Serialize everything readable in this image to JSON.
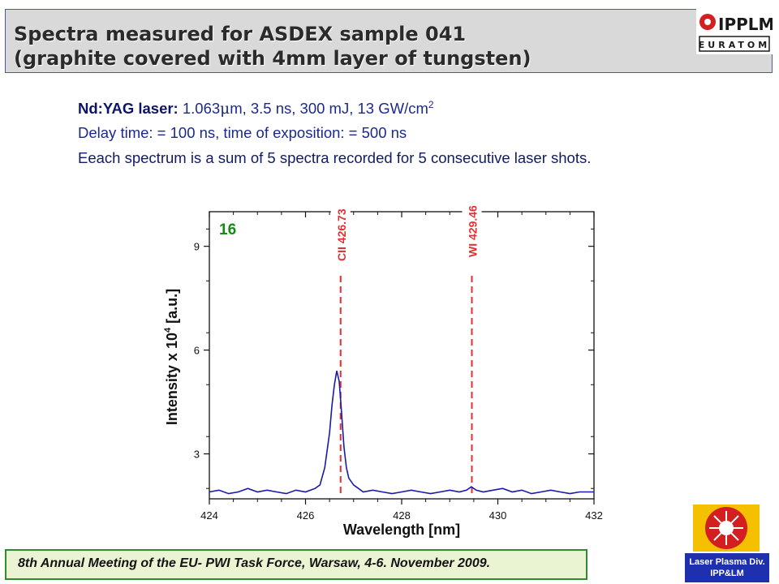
{
  "header": {
    "title_line1": "Spectra measured for ASDEX sample 041",
    "title_line2": "(graphite covered with 4mm layer of tungsten)",
    "logo_text_top": "IPPLM",
    "logo_text_bottom": "EURATOM"
  },
  "info": {
    "laser_label": "Nd:YAG laser:",
    "laser_params_pre": "1.063",
    "laser_mu": "μ",
    "laser_params_post": "m, 3.5 ns, 300 mJ, 13 GW/cm",
    "laser_exp": "2",
    "delay": "Delay time: = 100 ns,   time of exposition: = 500 ns",
    "sum_note": "Eeach spectrum  is a sum of 5 spectra recorded for 5 consecutive laser shots."
  },
  "chart_data": {
    "type": "line",
    "panel_label": "16",
    "xlabel": "Wavelength [nm]",
    "ylabel_pre": "Intensity x 10",
    "ylabel_exp": "4",
    "ylabel_post": " [a.u.]",
    "xlim": [
      424,
      432
    ],
    "ylim": [
      1.7,
      10.0
    ],
    "xticks": [
      424,
      426,
      428,
      430,
      432
    ],
    "yticks": [
      3,
      6,
      9
    ],
    "line_color": "#1a1aa8",
    "marker_color": "#e03030",
    "markers": [
      {
        "label": "CII 426.73",
        "x": 426.73
      },
      {
        "label": "WI 429.46",
        "x": 429.46
      }
    ],
    "series": [
      {
        "x": [
          424.0,
          424.2,
          424.4,
          424.6,
          424.8,
          425.0,
          425.2,
          425.4,
          425.6,
          425.8,
          426.0,
          426.2,
          426.3,
          426.4,
          426.5,
          426.55,
          426.6,
          426.65,
          426.7,
          426.75,
          426.8,
          426.85,
          426.9,
          427.0,
          427.1,
          427.2,
          427.4,
          427.6,
          427.8,
          428.0,
          428.2,
          428.4,
          428.6,
          428.8,
          429.0,
          429.2,
          429.35,
          429.45,
          429.55,
          429.7,
          429.9,
          430.1,
          430.3,
          430.5,
          430.7,
          430.9,
          431.1,
          431.3,
          431.5,
          431.7,
          432.0
        ],
        "values": [
          1.9,
          1.95,
          1.85,
          1.9,
          2.0,
          1.9,
          1.95,
          1.9,
          1.85,
          1.95,
          1.9,
          2.0,
          2.1,
          2.6,
          3.6,
          4.4,
          5.0,
          5.4,
          5.1,
          4.2,
          3.2,
          2.6,
          2.3,
          2.1,
          2.0,
          1.9,
          1.95,
          1.9,
          1.85,
          1.9,
          1.95,
          1.9,
          1.85,
          1.9,
          1.95,
          1.9,
          1.95,
          2.05,
          1.95,
          1.9,
          1.95,
          2.0,
          1.9,
          1.95,
          1.85,
          1.9,
          1.95,
          1.9,
          1.85,
          1.9,
          1.9
        ]
      }
    ]
  },
  "footer": {
    "text": "8th Annual Meeting of the EU- PWI Task Force, Warsaw, 4-6. November 2009."
  },
  "logo_bottom": {
    "line1": "Laser Plasma Div.",
    "line2": "IPP&LM"
  }
}
